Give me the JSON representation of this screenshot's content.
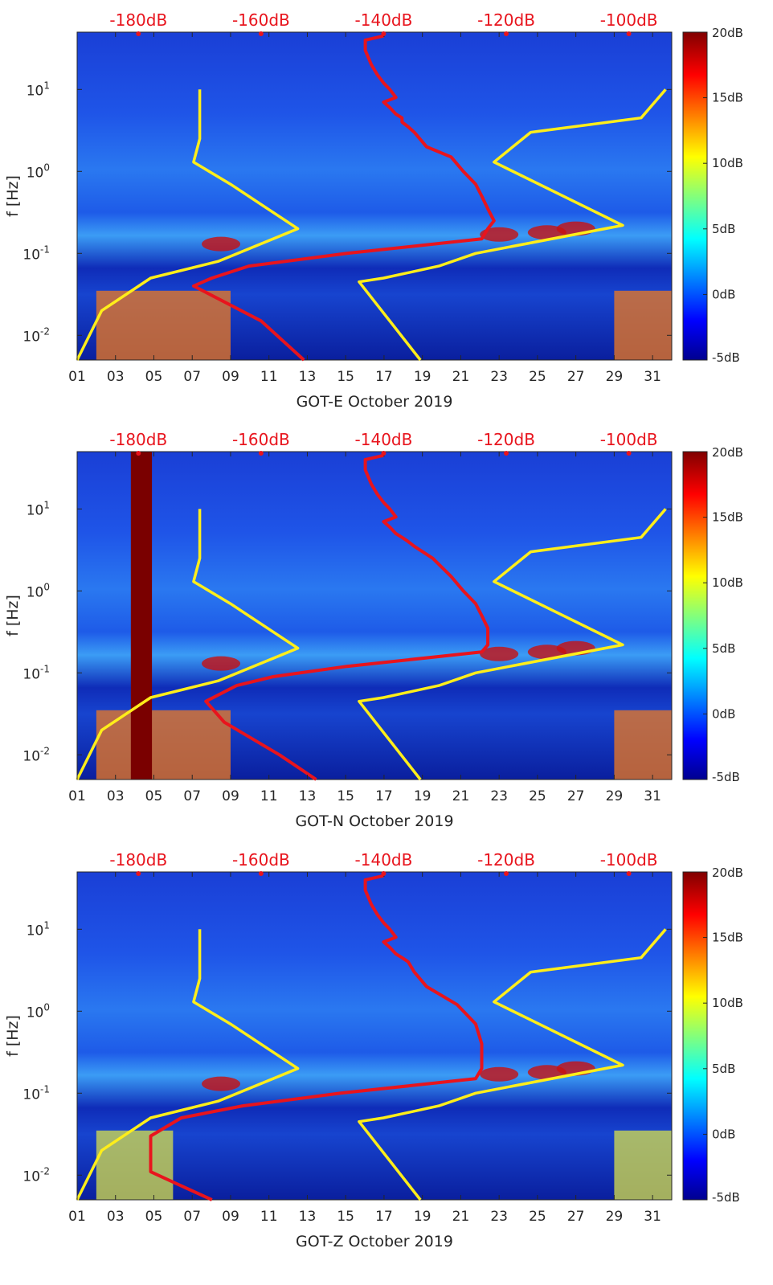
{
  "chart_data": [
    {
      "type": "heatmap",
      "title": "",
      "xlabel": "GOT-E October 2019",
      "ylabel": "f [Hz]",
      "x_tick_labels": [
        "01",
        "03",
        "05",
        "07",
        "09",
        "11",
        "13",
        "15",
        "17",
        "19",
        "21",
        "23",
        "25",
        "27",
        "29",
        "31"
      ],
      "x_tick_days": [
        1,
        3,
        5,
        7,
        9,
        11,
        13,
        15,
        17,
        19,
        21,
        23,
        25,
        27,
        29,
        31
      ],
      "xlim": [
        1,
        32
      ],
      "y_scale": "log",
      "ylim": [
        0.005,
        50
      ],
      "y_tick_values": [
        0.01,
        0.1,
        1,
        10
      ],
      "y_tick_labels": [
        {
          "base": "10",
          "exp": "-2"
        },
        {
          "base": "10",
          "exp": "-1"
        },
        {
          "base": "10",
          "exp": "0"
        },
        {
          "base": "10",
          "exp": "1"
        }
      ],
      "top_axis_labels": [
        "-180dB",
        "-160dB",
        "-140dB",
        "-120dB",
        "-100dB"
      ],
      "top_axis_db": [
        -180,
        -160,
        -140,
        -120,
        -100
      ],
      "top_axis_range_db": [
        -190,
        -93
      ],
      "colorbar": {
        "labels": [
          "20dB",
          "15dB",
          "10dB",
          "5dB",
          "0dB",
          "-5dB"
        ],
        "range": [
          -5,
          20
        ],
        "colormap": "jet"
      },
      "series": [
        {
          "name": "median PSD",
          "color": "#e8141d",
          "x_db": [
            -140,
            -143,
            -143,
            -142,
            -141,
            -140,
            -139,
            -138,
            -140,
            -139,
            -138,
            -137,
            -137,
            -136,
            -135,
            -133,
            -129,
            -127,
            -125,
            -124,
            -123,
            -122,
            -123,
            -124,
            -146,
            -162,
            -168,
            -171,
            -160,
            -153
          ],
          "freq": [
            45,
            40,
            30,
            20,
            15,
            12,
            10,
            8,
            7,
            6,
            5,
            4.5,
            4,
            3.5,
            3,
            2,
            1.5,
            1,
            0.7,
            0.5,
            0.35,
            0.25,
            0.2,
            0.15,
            0.1,
            0.07,
            0.05,
            0.04,
            0.015,
            0.005
          ]
        },
        {
          "name": "low noise model",
          "color": "#ffee1a",
          "x_db": [
            -170,
            -170,
            -171,
            -165,
            -154,
            -167,
            -178,
            -186,
            -190
          ],
          "freq": [
            10,
            2.5,
            1.3,
            0.7,
            0.2,
            0.08,
            0.05,
            0.02,
            0.005
          ]
        },
        {
          "name": "high noise model",
          "color": "#ffee1a",
          "x_db": [
            -94,
            -98,
            -116,
            -122,
            -101,
            -125,
            -131,
            -140,
            -144,
            -134
          ],
          "freq": [
            10,
            4.5,
            3,
            1.3,
            0.22,
            0.1,
            0.07,
            0.05,
            0.045,
            0.005
          ]
        }
      ]
    },
    {
      "type": "heatmap",
      "title": "",
      "xlabel": "GOT-N October 2019",
      "ylabel": "f [Hz]",
      "x_tick_labels": [
        "01",
        "03",
        "05",
        "07",
        "09",
        "11",
        "13",
        "15",
        "17",
        "19",
        "21",
        "23",
        "25",
        "27",
        "29",
        "31"
      ],
      "x_tick_days": [
        1,
        3,
        5,
        7,
        9,
        11,
        13,
        15,
        17,
        19,
        21,
        23,
        25,
        27,
        29,
        31
      ],
      "xlim": [
        1,
        32
      ],
      "y_scale": "log",
      "ylim": [
        0.005,
        50
      ],
      "y_tick_values": [
        0.01,
        0.1,
        1,
        10
      ],
      "y_tick_labels": [
        {
          "base": "10",
          "exp": "-2"
        },
        {
          "base": "10",
          "exp": "-1"
        },
        {
          "base": "10",
          "exp": "0"
        },
        {
          "base": "10",
          "exp": "1"
        }
      ],
      "top_axis_labels": [
        "-180dB",
        "-160dB",
        "-140dB",
        "-120dB",
        "-100dB"
      ],
      "top_axis_db": [
        -180,
        -160,
        -140,
        -120,
        -100
      ],
      "top_axis_range_db": [
        -190,
        -93
      ],
      "colorbar": {
        "labels": [
          "20dB",
          "15dB",
          "10dB",
          "5dB",
          "0dB",
          "-5dB"
        ],
        "range": [
          -5,
          20
        ],
        "colormap": "jet"
      },
      "series": [
        {
          "name": "median PSD",
          "color": "#e8141d",
          "x_db": [
            -140,
            -143,
            -143,
            -142,
            -141,
            -140,
            -139,
            -138,
            -140,
            -139,
            -138,
            -137,
            -136,
            -135,
            -132,
            -129,
            -127,
            -125,
            -124,
            -123,
            -123,
            -124,
            -146,
            -158,
            -164,
            -169,
            -166,
            -157,
            -151
          ],
          "freq": [
            45,
            40,
            30,
            20,
            15,
            12,
            10,
            8,
            7,
            6,
            5,
            4.5,
            4,
            3.5,
            2.5,
            1.5,
            1,
            0.7,
            0.5,
            0.35,
            0.22,
            0.18,
            0.12,
            0.09,
            0.07,
            0.045,
            0.025,
            0.01,
            0.005
          ]
        },
        {
          "name": "low noise model",
          "color": "#ffee1a",
          "x_db": [
            -170,
            -170,
            -171,
            -165,
            -154,
            -167,
            -178,
            -186,
            -190
          ],
          "freq": [
            10,
            2.5,
            1.3,
            0.7,
            0.2,
            0.08,
            0.05,
            0.02,
            0.005
          ]
        },
        {
          "name": "high noise model",
          "color": "#ffee1a",
          "x_db": [
            -94,
            -98,
            -116,
            -122,
            -101,
            -125,
            -131,
            -140,
            -144,
            -134
          ],
          "freq": [
            10,
            4.5,
            3,
            1.3,
            0.22,
            0.1,
            0.07,
            0.05,
            0.045,
            0.005
          ]
        }
      ]
    },
    {
      "type": "heatmap",
      "title": "",
      "xlabel": "GOT-Z October 2019",
      "ylabel": "f [Hz]",
      "x_tick_labels": [
        "01",
        "03",
        "05",
        "07",
        "09",
        "11",
        "13",
        "15",
        "17",
        "19",
        "21",
        "23",
        "25",
        "27",
        "29",
        "31"
      ],
      "x_tick_days": [
        1,
        3,
        5,
        7,
        9,
        11,
        13,
        15,
        17,
        19,
        21,
        23,
        25,
        27,
        29,
        31
      ],
      "xlim": [
        1,
        32
      ],
      "y_scale": "log",
      "ylim": [
        0.005,
        50
      ],
      "y_tick_values": [
        0.01,
        0.1,
        1,
        10
      ],
      "y_tick_labels": [
        {
          "base": "10",
          "exp": "-2"
        },
        {
          "base": "10",
          "exp": "-1"
        },
        {
          "base": "10",
          "exp": "0"
        },
        {
          "base": "10",
          "exp": "1"
        }
      ],
      "top_axis_labels": [
        "-180dB",
        "-160dB",
        "-140dB",
        "-120dB",
        "-100dB"
      ],
      "top_axis_db": [
        -180,
        -160,
        -140,
        -120,
        -100
      ],
      "top_axis_range_db": [
        -190,
        -93
      ],
      "colorbar": {
        "labels": [
          "20dB",
          "15dB",
          "10dB",
          "5dB",
          "0dB",
          "-5dB"
        ],
        "range": [
          -5,
          20
        ],
        "colormap": "jet"
      },
      "series": [
        {
          "name": "median PSD",
          "color": "#e8141d",
          "x_db": [
            -140,
            -143,
            -143,
            -142,
            -141,
            -140,
            -139,
            -138,
            -140,
            -139,
            -138,
            -137,
            -136,
            -135,
            -133,
            -128,
            -125,
            -124,
            -124,
            -125,
            -147,
            -163,
            -173,
            -178,
            -178,
            -174,
            -168
          ],
          "freq": [
            45,
            40,
            30,
            20,
            15,
            12,
            10,
            8,
            7,
            6,
            5,
            4.5,
            4,
            3,
            2,
            1.2,
            0.7,
            0.4,
            0.2,
            0.15,
            0.1,
            0.07,
            0.05,
            0.03,
            0.011,
            0.008,
            0.005
          ]
        },
        {
          "name": "low noise model",
          "color": "#ffee1a",
          "x_db": [
            -170,
            -170,
            -171,
            -165,
            -154,
            -167,
            -178,
            -186,
            -190
          ],
          "freq": [
            10,
            2.5,
            1.3,
            0.7,
            0.2,
            0.08,
            0.05,
            0.02,
            0.005
          ]
        },
        {
          "name": "high noise model",
          "color": "#ffee1a",
          "x_db": [
            -94,
            -98,
            -116,
            -122,
            -101,
            -125,
            -131,
            -140,
            -144,
            -134
          ],
          "freq": [
            10,
            4.5,
            3,
            1.3,
            0.22,
            0.1,
            0.07,
            0.05,
            0.045,
            0.005
          ]
        }
      ]
    }
  ],
  "colors": {
    "median_psd": "#e8141d",
    "noise_model": "#ffee1a",
    "top_labels": "#e8141d",
    "axis_text": "#262626"
  }
}
